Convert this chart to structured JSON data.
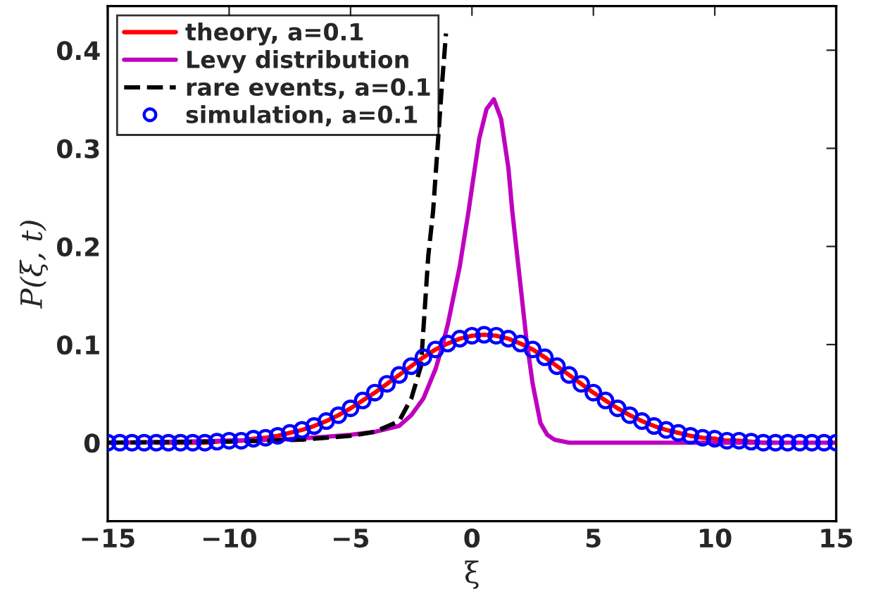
{
  "chart_data": {
    "type": "line",
    "xlabel": "ξ",
    "ylabel": "P(ξ, t)",
    "xlim": [
      -15,
      15
    ],
    "ylim": [
      -0.08,
      0.445
    ],
    "xticks": [
      {
        "value": -15,
        "label": "−15"
      },
      {
        "value": -10,
        "label": "−10"
      },
      {
        "value": -5,
        "label": "−5"
      },
      0,
      5,
      10,
      15
    ],
    "yticks": [
      0,
      0.1,
      0.2,
      0.3,
      0.4
    ],
    "legend": "top left",
    "grid": false,
    "series": [
      {
        "name": "theory, a=0.1",
        "color": "#ff0000",
        "line_style": "solid",
        "marker": "none",
        "x": [
          -13,
          -12.5,
          -12,
          -11.5,
          -11,
          -10.5,
          -10,
          -9.5,
          -9,
          -8.5,
          -8,
          -7.5,
          -7,
          -6.5,
          -6,
          -5.5,
          -5,
          -4.5,
          -4,
          -3.5,
          -3,
          -2.5,
          -2,
          -1.5,
          -1,
          -0.5,
          0,
          0.5,
          1,
          1.5,
          2,
          2.5,
          3,
          3.5,
          4,
          4.5,
          5,
          5.5,
          6,
          6.5,
          7,
          7.5,
          8,
          8.5,
          9,
          9.5,
          10,
          10.5,
          11,
          11.5,
          12,
          12.5
        ],
        "values": [
          0,
          0,
          0,
          0,
          0,
          0.001,
          0.002,
          0.002,
          0.004,
          0.005,
          0.007,
          0.01,
          0.013,
          0.017,
          0.022,
          0.028,
          0.035,
          0.043,
          0.051,
          0.06,
          0.069,
          0.078,
          0.087,
          0.095,
          0.101,
          0.106,
          0.109,
          0.11,
          0.109,
          0.106,
          0.101,
          0.095,
          0.087,
          0.078,
          0.069,
          0.06,
          0.051,
          0.043,
          0.035,
          0.028,
          0.022,
          0.017,
          0.013,
          0.01,
          0.007,
          0.005,
          0.004,
          0.002,
          0.002,
          0.001,
          0,
          0
        ]
      },
      {
        "name": "Levy distribution",
        "color": "#bf00bf",
        "line_style": "solid",
        "marker": "none",
        "x": [
          -15,
          -12,
          -10,
          -8,
          -6,
          -5,
          -4,
          -3,
          -2.5,
          -2,
          -1.5,
          -1.25,
          -1,
          -0.5,
          -0.14,
          0,
          0.3,
          0.6,
          0.9,
          1.2,
          1.5,
          1.66,
          2,
          2.24,
          2.5,
          2.82,
          3.1,
          3.4,
          4,
          15
        ],
        "values": [
          0,
          0.001,
          0.002,
          0.003,
          0.006,
          0.008,
          0.011,
          0.017,
          0.028,
          0.045,
          0.075,
          0.096,
          0.12,
          0.18,
          0.236,
          0.26,
          0.31,
          0.34,
          0.35,
          0.33,
          0.28,
          0.236,
          0.16,
          0.106,
          0.06,
          0.02,
          0.008,
          0.003,
          0,
          0
        ]
      },
      {
        "name": "rare events, a=0.1",
        "color": "#000000",
        "line_style": "dashed",
        "marker": "none",
        "x": [
          -15,
          -10,
          -7,
          -5,
          -4,
          -3,
          -2.5,
          -2.1,
          -1.8,
          -1.6,
          -1.42,
          -1.25,
          -1.07
        ],
        "values": [
          0,
          0.001,
          0.003,
          0.007,
          0.011,
          0.022,
          0.045,
          0.078,
          0.19,
          0.236,
          0.3,
          0.36,
          0.417
        ]
      },
      {
        "name": "simulation, a=0.1",
        "type": "scatter",
        "color": "#0000ff",
        "marker": "circle",
        "x": [
          -15,
          -14.5,
          -14,
          -13.5,
          -13,
          -12.5,
          -12,
          -11.5,
          -11,
          -10.5,
          -10,
          -9.5,
          -9,
          -8.5,
          -8,
          -7.5,
          -7,
          -6.5,
          -6,
          -5.5,
          -5,
          -4.5,
          -4,
          -3.5,
          -3,
          -2.5,
          -2,
          -1.5,
          -1,
          -0.5,
          0,
          0.5,
          1,
          1.5,
          2,
          2.5,
          3,
          3.5,
          4,
          4.5,
          5,
          5.5,
          6,
          6.5,
          7,
          7.5,
          8,
          8.5,
          9,
          9.5,
          10,
          10.5,
          11,
          11.5,
          12,
          12.5,
          13,
          13.5,
          14,
          14.5,
          15
        ],
        "values": [
          0,
          0,
          0,
          0,
          0,
          0,
          0,
          0,
          0,
          0.001,
          0.002,
          0.002,
          0.004,
          0.005,
          0.007,
          0.01,
          0.013,
          0.017,
          0.022,
          0.028,
          0.035,
          0.043,
          0.051,
          0.06,
          0.069,
          0.078,
          0.087,
          0.095,
          0.101,
          0.106,
          0.109,
          0.11,
          0.109,
          0.106,
          0.101,
          0.095,
          0.087,
          0.078,
          0.069,
          0.06,
          0.051,
          0.043,
          0.035,
          0.028,
          0.022,
          0.017,
          0.013,
          0.01,
          0.007,
          0.005,
          0.004,
          0.002,
          0.002,
          0.001,
          0,
          0,
          0,
          0,
          0,
          0,
          0
        ]
      }
    ]
  }
}
